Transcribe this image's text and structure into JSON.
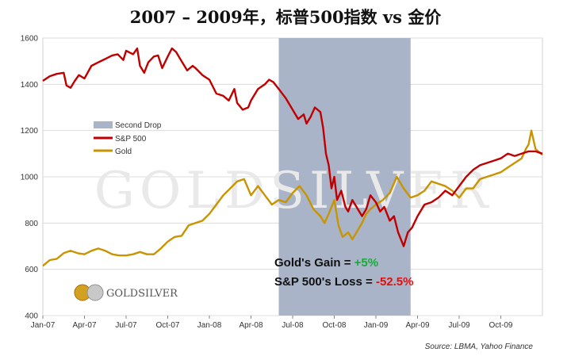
{
  "chart_data": {
    "type": "line",
    "title": "2007 – 2009年，标普500指数 vs 金价",
    "ylim": [
      400,
      1600
    ],
    "y_ticks": [
      "400",
      "600",
      "800",
      "1000",
      "1200",
      "1400",
      "1600"
    ],
    "x_ticks": [
      "Jan-07",
      "Apr-07",
      "Jul-07",
      "Oct-07",
      "Jan-08",
      "Apr-08",
      "Jul-08",
      "Oct-08",
      "Jan-09",
      "Apr-09",
      "Jul-09",
      "Oct-09"
    ],
    "x_range_months": [
      0,
      36
    ],
    "shaded_region": {
      "name": "Second Drop",
      "start_month": 17,
      "end_month": 26.5,
      "color": "#aab4c8"
    },
    "series": [
      {
        "name": "S&P 500",
        "color": "#c00000",
        "x": [
          0,
          0.5,
          1,
          1.5,
          1.7,
          2,
          2.3,
          2.6,
          3,
          3.5,
          4,
          4.5,
          5,
          5.4,
          5.8,
          6,
          6.5,
          6.8,
          7,
          7.3,
          7.6,
          8,
          8.3,
          8.6,
          9,
          9.3,
          9.6,
          10,
          10.4,
          10.8,
          11,
          11.5,
          12,
          12.5,
          13,
          13.4,
          13.8,
          14,
          14.4,
          14.8,
          15,
          15.5,
          16,
          16.3,
          16.6,
          17,
          17.5,
          18,
          18.4,
          18.8,
          19,
          19.3,
          19.6,
          20,
          20.2,
          20.4,
          20.6,
          20.8,
          21,
          21.2,
          21.5,
          21.8,
          22,
          22.3,
          22.6,
          23,
          23.3,
          23.6,
          24,
          24.3,
          24.6,
          25,
          25.3,
          25.6,
          25.8,
          26,
          26.3,
          26.6,
          27,
          27.5,
          28,
          28.5,
          29,
          29.5,
          30,
          30.5,
          31,
          31.5,
          32,
          32.5,
          33,
          33.5,
          34,
          34.5,
          35,
          35.5,
          36
        ],
        "values": [
          1415,
          1435,
          1445,
          1450,
          1395,
          1385,
          1415,
          1440,
          1425,
          1480,
          1495,
          1510,
          1525,
          1530,
          1505,
          1545,
          1530,
          1555,
          1480,
          1450,
          1495,
          1520,
          1525,
          1470,
          1520,
          1555,
          1540,
          1500,
          1460,
          1480,
          1470,
          1440,
          1420,
          1360,
          1350,
          1330,
          1380,
          1320,
          1290,
          1300,
          1330,
          1380,
          1400,
          1420,
          1410,
          1380,
          1340,
          1290,
          1250,
          1270,
          1230,
          1260,
          1300,
          1280,
          1210,
          1100,
          1050,
          950,
          1000,
          900,
          940,
          870,
          850,
          900,
          870,
          830,
          860,
          920,
          890,
          850,
          870,
          810,
          830,
          760,
          730,
          700,
          760,
          780,
          830,
          880,
          890,
          910,
          940,
          920,
          960,
          1000,
          1030,
          1050,
          1060,
          1070,
          1080,
          1100,
          1090,
          1100,
          1110,
          1110,
          1100
        ]
      },
      {
        "name": "Gold",
        "color": "#c89400",
        "x": [
          0,
          0.5,
          1,
          1.5,
          2,
          2.5,
          3,
          3.5,
          4,
          4.5,
          5,
          5.5,
          6,
          6.5,
          7,
          7.5,
          8,
          8.5,
          9,
          9.5,
          10,
          10.5,
          11,
          11.5,
          12,
          12.5,
          13,
          13.5,
          14,
          14.5,
          15,
          15.5,
          16,
          16.5,
          17,
          17.5,
          18,
          18.5,
          19,
          19.5,
          20,
          20.3,
          20.6,
          21,
          21.3,
          21.6,
          22,
          22.3,
          22.6,
          23,
          23.3,
          23.6,
          24,
          24.5,
          25,
          25.5,
          26,
          26.5,
          27,
          27.5,
          28,
          28.5,
          29,
          29.5,
          30,
          30.5,
          31,
          31.5,
          32,
          32.5,
          33,
          33.5,
          34,
          34.5,
          34.8,
          35,
          35.2,
          35.5,
          36
        ],
        "values": [
          615,
          640,
          645,
          670,
          680,
          670,
          665,
          680,
          690,
          680,
          665,
          660,
          660,
          665,
          675,
          665,
          665,
          690,
          720,
          740,
          745,
          790,
          800,
          810,
          840,
          880,
          920,
          950,
          980,
          990,
          920,
          960,
          920,
          880,
          900,
          890,
          930,
          960,
          920,
          860,
          830,
          800,
          840,
          900,
          790,
          740,
          760,
          730,
          760,
          800,
          840,
          860,
          880,
          900,
          930,
          1000,
          950,
          910,
          920,
          940,
          980,
          970,
          960,
          940,
          910,
          950,
          950,
          990,
          1000,
          1010,
          1020,
          1040,
          1060,
          1080,
          1120,
          1140,
          1200,
          1120,
          1095
        ]
      }
    ],
    "annotations": {
      "gold_label": "Gold's Gain = ",
      "gold_value": "+5%",
      "sp_label": "S&P 500's Loss = ",
      "sp_value": "-52.5%"
    },
    "legend_position": "upper-left (inside plot)",
    "grid": "horizontal"
  },
  "watermark": "GOLDSILVER",
  "brand_logo_text": "GOLDSILVER",
  "source": "Source: LBMA, Yahoo Finance",
  "colors": {
    "sp500": "#c00000",
    "gold": "#c89400",
    "shade": "#aab4c8",
    "positive": "#1aaa3a",
    "negative": "#e01010"
  }
}
